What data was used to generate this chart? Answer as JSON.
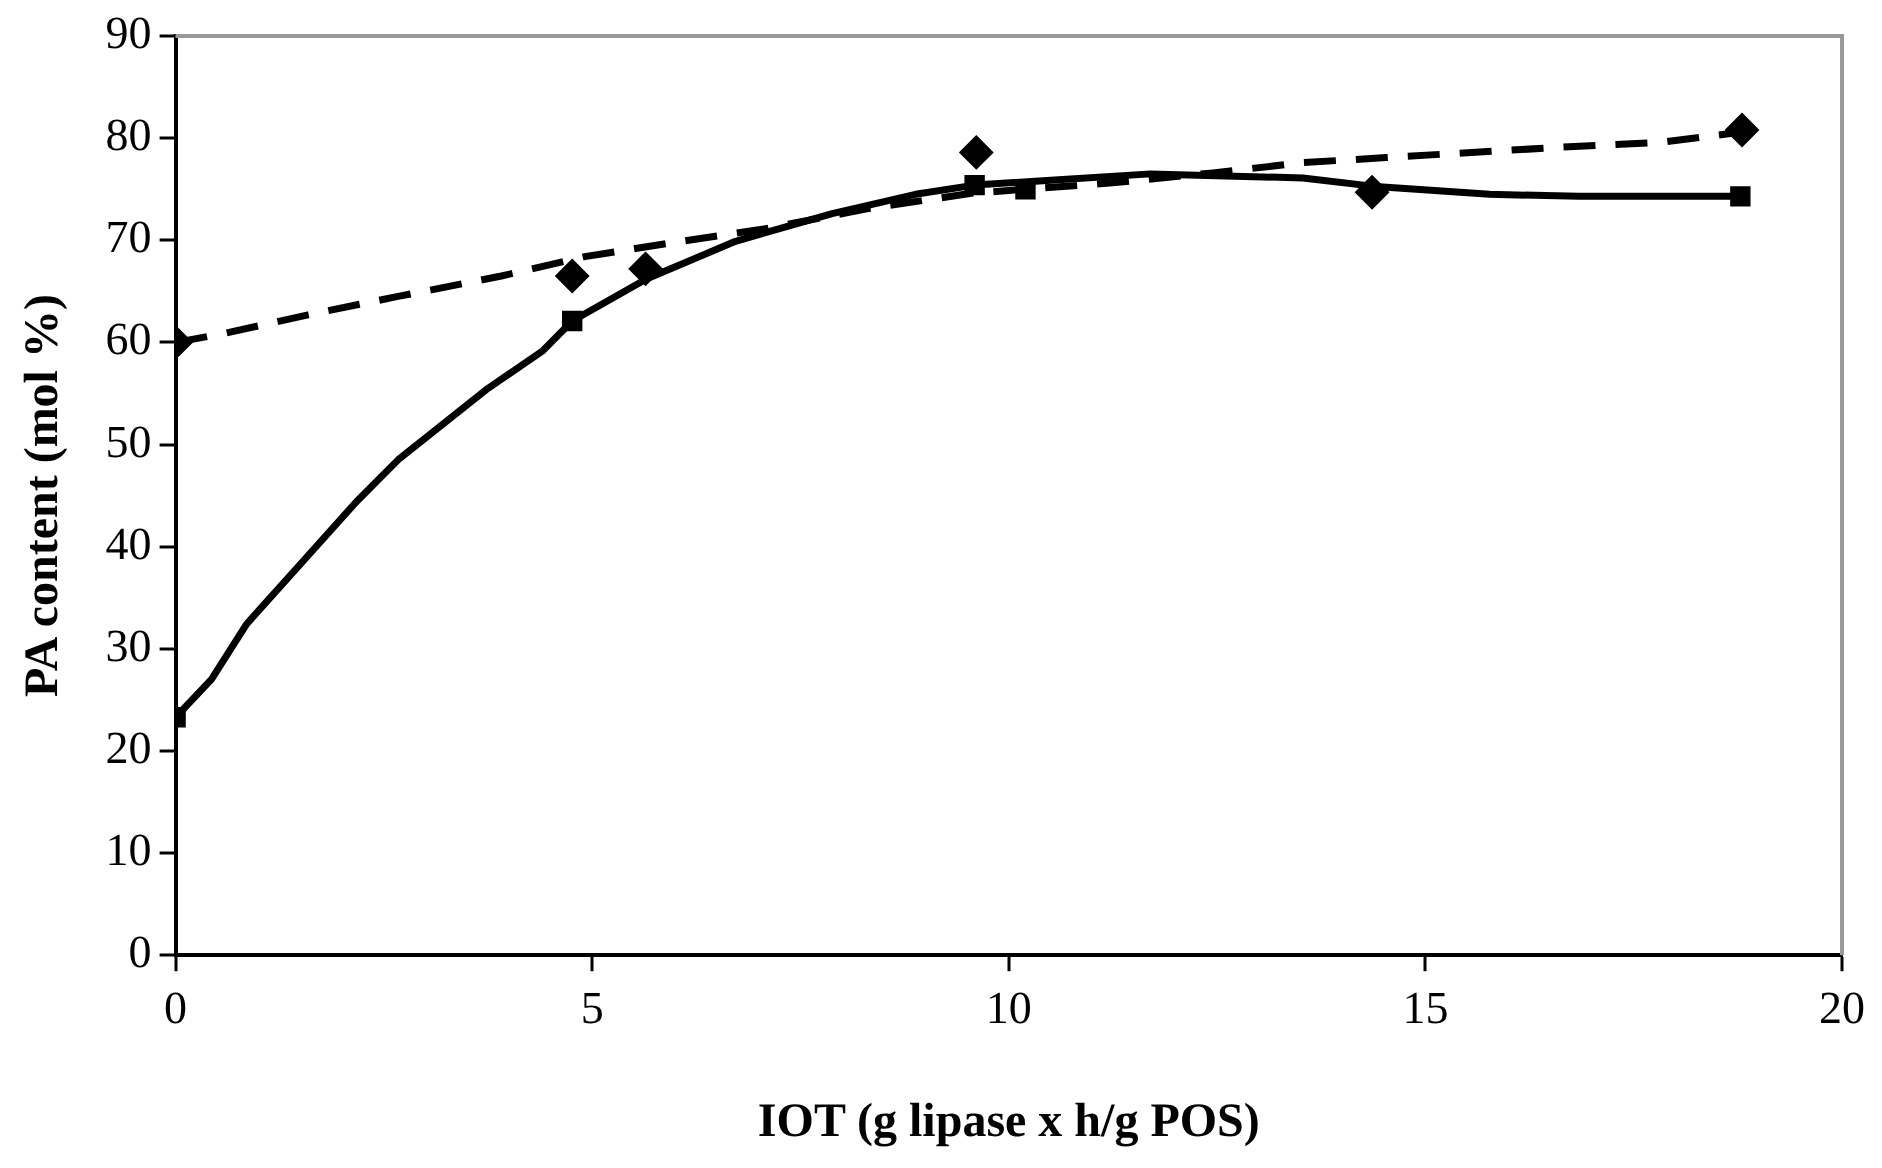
{
  "chart_data": {
    "type": "scatter",
    "xlabel": "IOT (g lipase x h/g POS)",
    "ylabel": "PA content (mol %)",
    "xlim": [
      0,
      20
    ],
    "xticks": [
      0,
      5,
      10,
      15,
      20
    ],
    "ylim": [
      0,
      90
    ],
    "yticks": [
      0,
      10,
      20,
      30,
      40,
      50,
      60,
      70,
      80,
      90
    ],
    "grid": false,
    "legend": false,
    "series": [
      {
        "type": "scatter",
        "marker": "diamond",
        "color": "#000000",
        "x": [
          0,
          4.76,
          5.64,
          9.61,
          14.36,
          18.8
        ],
        "values": [
          60.0,
          66.5,
          67.2,
          78.6,
          74.7,
          80.8
        ]
      },
      {
        "type": "scatter",
        "marker": "square",
        "color": "#000000",
        "x": [
          0,
          4.76,
          9.59,
          10.2,
          18.78
        ],
        "values": [
          23.3,
          62.1,
          75.4,
          75.0,
          74.3
        ]
      },
      {
        "type": "line",
        "marker": "none",
        "line_style": "dashed",
        "color": "#000000",
        "x": [
          0,
          0.6,
          1.59,
          2.67,
          3.91,
          4.91,
          6.07,
          7.06,
          8.31,
          9.55,
          11.21,
          12.45,
          13.53,
          14.53,
          16.6,
          17.84,
          18.8
        ],
        "values": [
          60.0,
          60.9,
          62.7,
          64.5,
          66.5,
          68.4,
          69.9,
          71.1,
          73.1,
          74.6,
          75.6,
          76.6,
          77.6,
          78.1,
          79.1,
          79.6,
          80.6
        ]
      },
      {
        "type": "line",
        "marker": "none",
        "line_style": "solid",
        "color": "#000000",
        "x": [
          0,
          0.43,
          0.85,
          1.51,
          2.17,
          2.67,
          3.75,
          4.41,
          4.76,
          5.65,
          6.72,
          7.88,
          8.88,
          9.59,
          10.55,
          11.7,
          13.53,
          14.36,
          15.77,
          16.84,
          18.78
        ],
        "values": [
          23.3,
          27.0,
          32.4,
          38.4,
          44.4,
          48.5,
          55.5,
          59.2,
          62.1,
          66.2,
          69.9,
          72.6,
          74.5,
          75.4,
          75.9,
          76.5,
          76.1,
          75.3,
          74.5,
          74.3,
          74.3
        ]
      }
    ]
  }
}
